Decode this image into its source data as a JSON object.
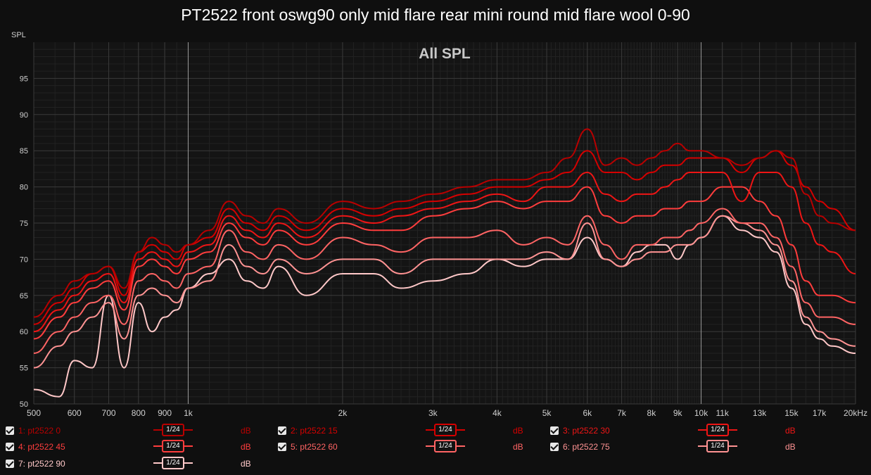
{
  "title": "PT2522 front oswg90 only mid flare rear mini round mid flare wool 0-90",
  "chart_data": {
    "type": "line",
    "overlay_label": "All SPL",
    "ylabel": "SPL",
    "x_scale": "log",
    "xlim": [
      500,
      20000
    ],
    "ylim": [
      50,
      100
    ],
    "x_ticks": [
      500,
      600,
      700,
      800,
      900,
      1000,
      2000,
      3000,
      4000,
      5000,
      6000,
      7000,
      8000,
      9000,
      10000,
      11000,
      13000,
      15000,
      17000,
      20000
    ],
    "x_tick_labels": [
      "500",
      "600",
      "700",
      "800",
      "900",
      "1k",
      "2k",
      "3k",
      "4k",
      "5k",
      "6k",
      "7k",
      "8k",
      "9k",
      "10k",
      "11k",
      "13k",
      "15k",
      "17k",
      "20kHz"
    ],
    "y_ticks": [
      50,
      55,
      60,
      65,
      70,
      75,
      80,
      85,
      90,
      95
    ],
    "grid": true,
    "series": [
      {
        "name": "1: pt2522 0",
        "color": "#b80000",
        "x": [
          500,
          560,
          600,
          650,
          700,
          750,
          800,
          850,
          900,
          950,
          1000,
          1100,
          1200,
          1300,
          1400,
          1500,
          1700,
          2000,
          2300,
          2600,
          3000,
          3500,
          4000,
          4500,
          5000,
          5500,
          6000,
          6500,
          7000,
          7500,
          8000,
          8500,
          9000,
          9500,
          10000,
          11000,
          12000,
          13000,
          14000,
          15000,
          16000,
          17000,
          18000,
          20000
        ],
        "y": [
          62,
          65,
          67,
          68,
          69,
          66,
          71,
          73,
          72,
          71,
          72,
          74,
          78,
          76,
          75,
          77,
          75,
          78,
          77,
          78,
          79,
          80,
          81,
          81,
          82,
          84,
          88,
          83,
          84,
          83,
          84,
          85,
          86,
          85,
          85,
          84,
          83,
          84,
          85,
          84,
          79,
          76,
          75,
          74
        ]
      },
      {
        "name": "2: pt2522 15",
        "color": "#d60000",
        "x": [
          500,
          560,
          600,
          650,
          700,
          750,
          800,
          850,
          900,
          950,
          1000,
          1100,
          1200,
          1300,
          1400,
          1500,
          1700,
          2000,
          2300,
          2600,
          3000,
          3500,
          4000,
          4500,
          5000,
          5500,
          6000,
          6500,
          7000,
          7500,
          8000,
          8500,
          9000,
          9500,
          10000,
          11000,
          12000,
          13000,
          14000,
          15000,
          16000,
          17000,
          18000,
          20000
        ],
        "y": [
          61,
          64,
          66,
          68,
          69,
          65,
          71,
          72,
          71,
          70,
          72,
          73,
          77,
          75,
          74,
          76,
          74,
          77,
          76,
          77,
          78,
          79,
          80,
          80,
          81,
          82,
          85,
          82,
          82,
          81,
          82,
          83,
          83,
          84,
          84,
          84,
          82,
          84,
          85,
          83,
          80,
          78,
          77,
          74
        ]
      },
      {
        "name": "3: pt2522 30",
        "color": "#ee1515",
        "x": [
          500,
          560,
          600,
          650,
          700,
          750,
          800,
          850,
          900,
          950,
          1000,
          1100,
          1200,
          1300,
          1400,
          1500,
          1700,
          2000,
          2300,
          2600,
          3000,
          3500,
          4000,
          4500,
          5000,
          5500,
          6000,
          6500,
          7000,
          7500,
          8000,
          8500,
          9000,
          9500,
          10000,
          11000,
          12000,
          13000,
          14000,
          15000,
          16000,
          17000,
          18000,
          20000
        ],
        "y": [
          60,
          63,
          65,
          67,
          68,
          64,
          70,
          71,
          70,
          69,
          71,
          72,
          76,
          74,
          73,
          75,
          73,
          76,
          75,
          76,
          77,
          78,
          79,
          78,
          80,
          80,
          82,
          79,
          78,
          79,
          79,
          80,
          81,
          82,
          82,
          82,
          78,
          82,
          82,
          80,
          75,
          72,
          71,
          68
        ]
      },
      {
        "name": "4: pt2522 45",
        "color": "#ff3d3d",
        "x": [
          500,
          560,
          600,
          650,
          700,
          750,
          800,
          850,
          900,
          950,
          1000,
          1100,
          1200,
          1300,
          1400,
          1500,
          1700,
          2000,
          2300,
          2600,
          3000,
          3500,
          4000,
          4500,
          5000,
          5500,
          6000,
          6500,
          7000,
          7500,
          8000,
          8500,
          9000,
          9500,
          10000,
          11000,
          12000,
          13000,
          14000,
          15000,
          16000,
          17000,
          18000,
          20000
        ],
        "y": [
          59,
          62,
          64,
          66,
          67,
          63,
          69,
          70,
          69,
          68,
          70,
          71,
          75,
          73,
          72,
          74,
          72,
          75,
          74,
          74,
          76,
          77,
          78,
          77,
          78,
          78,
          80,
          76,
          75,
          76,
          76,
          77,
          77,
          78,
          78,
          80,
          80,
          78,
          76,
          72,
          67,
          65,
          65,
          64
        ]
      },
      {
        "name": "5: pt2522 60",
        "color": "#ff6464",
        "x": [
          500,
          560,
          600,
          650,
          700,
          750,
          800,
          850,
          900,
          950,
          1000,
          1100,
          1200,
          1300,
          1400,
          1500,
          1700,
          2000,
          2300,
          2600,
          3000,
          3500,
          4000,
          4500,
          5000,
          5500,
          6000,
          6500,
          7000,
          7500,
          8000,
          8500,
          9000,
          9500,
          10000,
          11000,
          12000,
          13000,
          14000,
          15000,
          16000,
          17000,
          18000,
          20000
        ],
        "y": [
          57,
          60,
          62,
          64,
          65,
          61,
          67,
          68,
          67,
          66,
          68,
          69,
          74,
          71,
          70,
          72,
          70,
          73,
          72,
          71,
          73,
          73,
          74,
          72,
          73,
          72,
          76,
          72,
          70,
          72,
          72,
          73,
          73,
          74,
          75,
          77,
          75,
          75,
          73,
          69,
          64,
          62,
          62,
          61
        ]
      },
      {
        "name": "6: pt2522 75",
        "color": "#ff9393",
        "x": [
          500,
          560,
          600,
          650,
          700,
          750,
          800,
          850,
          900,
          950,
          1000,
          1100,
          1200,
          1300,
          1400,
          1500,
          1700,
          2000,
          2300,
          2600,
          3000,
          3500,
          4000,
          4500,
          5000,
          5500,
          6000,
          6500,
          7000,
          7500,
          8000,
          8500,
          9000,
          9500,
          10000,
          11000,
          12000,
          13000,
          14000,
          15000,
          16000,
          17000,
          18000,
          20000
        ],
        "y": [
          55,
          58,
          60,
          62,
          64,
          59,
          65,
          66,
          65,
          64,
          66,
          67,
          72,
          69,
          68,
          70,
          68,
          70,
          70,
          68,
          70,
          70,
          70,
          70,
          71,
          70,
          75,
          70,
          69,
          70,
          71,
          71,
          72,
          72,
          73,
          76,
          75,
          74,
          72,
          67,
          62,
          60,
          59,
          58
        ]
      },
      {
        "name": "7: pt2522 90",
        "color": "#ffc8c8",
        "x": [
          500,
          560,
          600,
          650,
          700,
          750,
          800,
          850,
          900,
          950,
          1000,
          1100,
          1200,
          1300,
          1400,
          1500,
          1700,
          2000,
          2300,
          2600,
          3000,
          3500,
          4000,
          4500,
          5000,
          5500,
          6000,
          6500,
          7000,
          7500,
          8000,
          8500,
          9000,
          9500,
          10000,
          11000,
          12000,
          13000,
          14000,
          15000,
          16000,
          17000,
          18000,
          20000
        ],
        "y": [
          52,
          51,
          56,
          55,
          65,
          55,
          64,
          60,
          62,
          63,
          66,
          68,
          70,
          67,
          66,
          69,
          65,
          68,
          68,
          66,
          67,
          68,
          70,
          69,
          70,
          70,
          73,
          70,
          69,
          71,
          72,
          72,
          70,
          72,
          73,
          76,
          74,
          73,
          71,
          66,
          61,
          59,
          58,
          57
        ]
      }
    ],
    "legend": [
      {
        "label": "1: pt2522 0",
        "smoothing": "1/24",
        "unit": "dB"
      },
      {
        "label": "2: pt2522 15",
        "smoothing": "1/24",
        "unit": "dB"
      },
      {
        "label": "3: pt2522 30",
        "smoothing": "1/24",
        "unit": "dB"
      },
      {
        "label": "4: pt2522 45",
        "smoothing": "1/24",
        "unit": "dB"
      },
      {
        "label": "5: pt2522 60",
        "smoothing": "1/24",
        "unit": "dB"
      },
      {
        "label": "6: pt2522 75",
        "smoothing": "1/24",
        "unit": "dB"
      },
      {
        "label": "7: pt2522 90",
        "smoothing": "1/24",
        "unit": "dB"
      }
    ]
  }
}
